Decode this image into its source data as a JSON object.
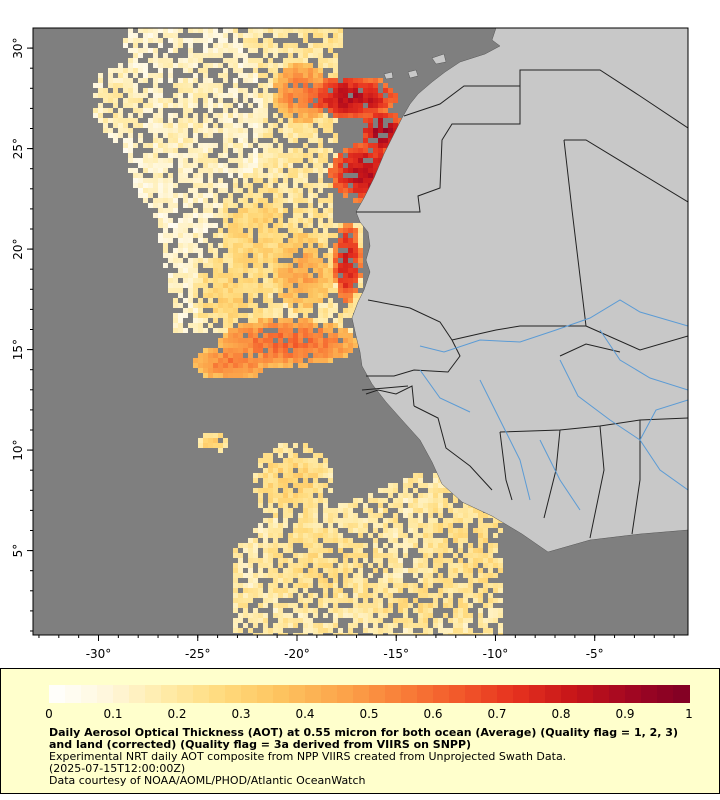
{
  "map": {
    "x_axis": {
      "ticks": [
        {
          "value": -30,
          "label": "-30°"
        },
        {
          "value": -25,
          "label": "-25°"
        },
        {
          "value": -20,
          "label": "-20°"
        },
        {
          "value": -15,
          "label": "-15°"
        },
        {
          "value": -10,
          "label": "-10°"
        },
        {
          "value": -5,
          "label": "-5°"
        }
      ]
    },
    "y_axis": {
      "ticks": [
        {
          "value": 30,
          "label": "30°"
        },
        {
          "value": 25,
          "label": "25°"
        },
        {
          "value": 20,
          "label": "20°"
        },
        {
          "value": 15,
          "label": "15°"
        },
        {
          "value": 10,
          "label": "10°"
        },
        {
          "value": 5,
          "label": "5°"
        }
      ]
    },
    "lon_range": [
      -33.3,
      -0.3
    ],
    "lat_range": [
      0.8,
      31.0
    ],
    "colors": {
      "ocean_no_data": "#7f7f7f",
      "land": "#c8c8c8",
      "borders": "#222222",
      "rivers": "#5b9bd5"
    }
  },
  "legend": {
    "colorbar": {
      "min": 0,
      "max": 1,
      "ticks": [
        {
          "value": 0,
          "label": "0"
        },
        {
          "value": 0.1,
          "label": "0.1"
        },
        {
          "value": 0.2,
          "label": "0.2"
        },
        {
          "value": 0.3,
          "label": "0.3"
        },
        {
          "value": 0.4,
          "label": "0.4"
        },
        {
          "value": 0.5,
          "label": "0.5"
        },
        {
          "value": 0.6,
          "label": "0.6"
        },
        {
          "value": 0.7,
          "label": "0.7"
        },
        {
          "value": 0.8,
          "label": "0.8"
        },
        {
          "value": 0.9,
          "label": "0.9"
        },
        {
          "value": 1,
          "label": "1"
        }
      ],
      "colors": [
        "#ffffff",
        "#fff7dc",
        "#ffeba8",
        "#ffda7c",
        "#fdc35f",
        "#fca64b",
        "#f9813a",
        "#f25a2b",
        "#e6321f",
        "#c71519",
        "#a10622",
        "#7f0024"
      ]
    },
    "title": "Daily Aerosol Optical Thickness (AOT) at 0.55 micron for both ocean (Average) (Quality flag = 1, 2, 3) and land (corrected) (Quality flag = 3a derived from VIIRS on SNPP)",
    "description": "Experimental NRT daily AOT composite from NPP VIIRS created from Unprojected Swath Data.",
    "date": "(2025-07-15T12:00:00Z)",
    "credit": "Data courtesy of NOAA/AOML/PHOD/Atlantic OceanWatch"
  }
}
